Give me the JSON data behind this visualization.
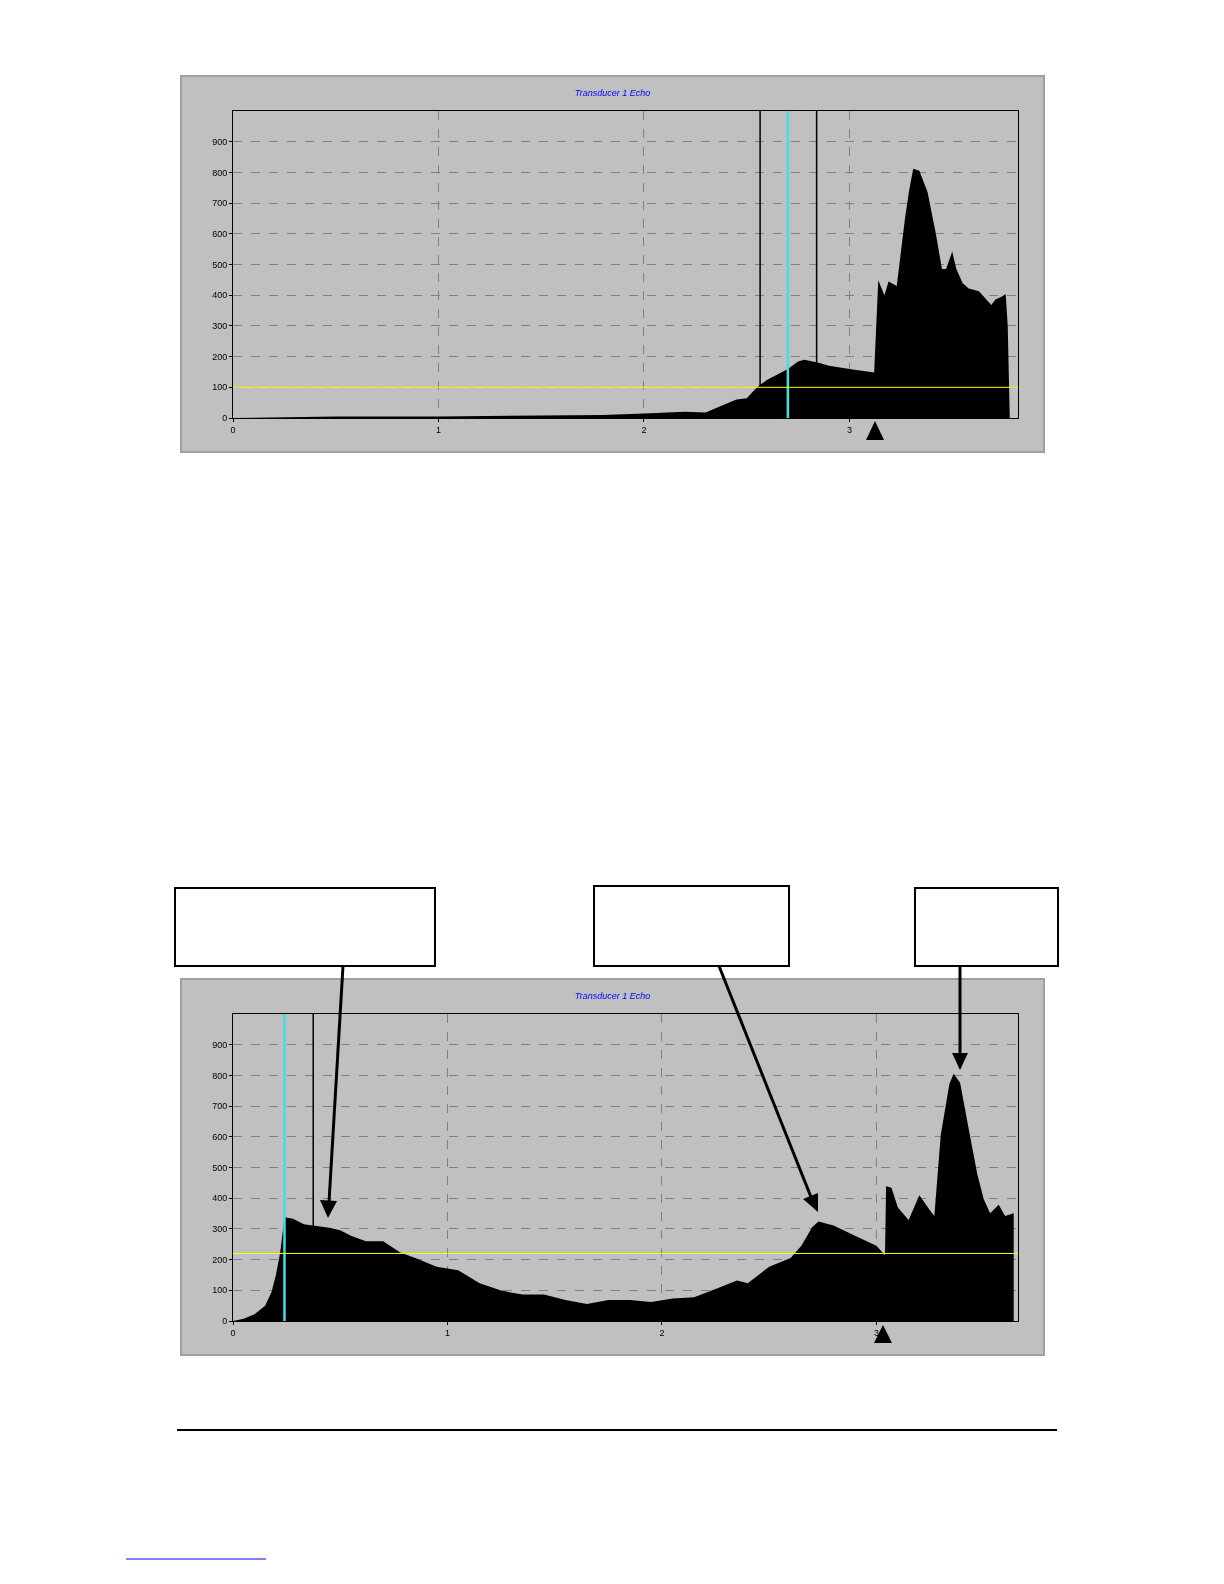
{
  "chart_data": [
    {
      "type": "area",
      "title": "Transducer 1 Echo",
      "color": "#000000",
      "xlim": [
        0,
        3.82
      ],
      "ylim": [
        0,
        1000
      ],
      "xticks": [
        0,
        1,
        2,
        3
      ],
      "yticks": [
        0,
        100,
        200,
        300,
        400,
        500,
        600,
        700,
        800,
        900
      ],
      "grid": true,
      "x": [
        0,
        0.5,
        1.0,
        1.5,
        1.8,
        2.0,
        2.2,
        2.3,
        2.38,
        2.45,
        2.5,
        2.55,
        2.6,
        2.7,
        2.75,
        2.78,
        2.85,
        2.9,
        3.0,
        3.12,
        3.14,
        3.17,
        3.19,
        3.23,
        3.27,
        3.29,
        3.31,
        3.34,
        3.38,
        3.42,
        3.45,
        3.47,
        3.5,
        3.52,
        3.55,
        3.58,
        3.63,
        3.69,
        3.71,
        3.74,
        3.76,
        3.77,
        3.78
      ],
      "values": [
        0,
        5,
        5,
        8,
        10,
        15,
        20,
        18,
        41,
        60,
        64,
        100,
        125,
        160,
        184,
        190,
        180,
        170,
        160,
        148,
        449,
        400,
        445,
        430,
        650,
        740,
        812,
        805,
        735,
        601,
        485,
        485,
        542,
        485,
        440,
        422,
        413,
        368,
        386,
        395,
        404,
        300,
        0
      ],
      "ref_lines": [
        {
          "axis": "x",
          "value": 2.565,
          "color": "#000000"
        },
        {
          "axis": "x",
          "value": 2.7,
          "color": "#40e0e0"
        },
        {
          "axis": "x",
          "value": 2.84,
          "color": "#000000"
        },
        {
          "axis": "y",
          "value": 100,
          "color": "#ffff00"
        }
      ]
    },
    {
      "type": "area",
      "title": "Transducer 1 Echo",
      "color": "#000000",
      "xlim": [
        0,
        3.66
      ],
      "ylim": [
        0,
        1000
      ],
      "xticks": [
        0,
        1,
        2,
        3
      ],
      "yticks": [
        0,
        100,
        200,
        300,
        400,
        500,
        600,
        700,
        800,
        900
      ],
      "grid": true,
      "x": [
        0,
        0.05,
        0.1,
        0.15,
        0.18,
        0.2,
        0.22,
        0.24,
        0.28,
        0.33,
        0.38,
        0.45,
        0.5,
        0.55,
        0.62,
        0.7,
        0.78,
        0.85,
        0.95,
        1.05,
        1.15,
        1.25,
        1.35,
        1.45,
        1.55,
        1.65,
        1.75,
        1.85,
        1.95,
        2.05,
        2.15,
        2.25,
        2.35,
        2.4,
        2.5,
        2.6,
        2.65,
        2.7,
        2.73,
        2.8,
        2.9,
        3.0,
        3.04,
        3.045,
        3.07,
        3.1,
        3.15,
        3.2,
        3.25,
        3.27,
        3.3,
        3.34,
        3.36,
        3.39,
        3.43,
        3.47,
        3.5,
        3.53,
        3.57,
        3.6,
        3.64
      ],
      "values": [
        0,
        7,
        22,
        50,
        95,
        150,
        223,
        338,
        333,
        315,
        310,
        304,
        296,
        278,
        260,
        260,
        223,
        205,
        177,
        165,
        123,
        99,
        86,
        86,
        68,
        55,
        68,
        68,
        62,
        73,
        77,
        104,
        132,
        123,
        177,
        205,
        245,
        305,
        324,
        311,
        278,
        245,
        214,
        439,
        434,
        370,
        329,
        410,
        360,
        342,
        607,
        772,
        805,
        776,
        626,
        479,
        397,
        351,
        379,
        342,
        351
      ],
      "ref_lines": [
        {
          "axis": "x",
          "value": 0.24,
          "color": "#40e0e0"
        },
        {
          "axis": "x",
          "value": 0.374,
          "color": "#000000"
        },
        {
          "axis": "y",
          "value": 220,
          "color": "#ffff00"
        }
      ]
    }
  ]
}
